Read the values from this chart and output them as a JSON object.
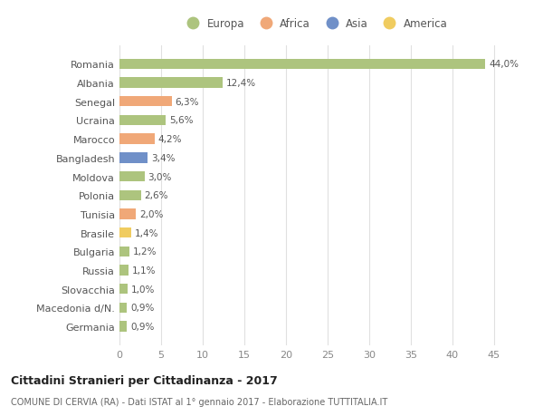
{
  "countries": [
    "Romania",
    "Albania",
    "Senegal",
    "Ucraina",
    "Marocco",
    "Bangladesh",
    "Moldova",
    "Polonia",
    "Tunisia",
    "Brasile",
    "Bulgaria",
    "Russia",
    "Slovacchia",
    "Macedonia d/N.",
    "Germania"
  ],
  "values": [
    44.0,
    12.4,
    6.3,
    5.6,
    4.2,
    3.4,
    3.0,
    2.6,
    2.0,
    1.4,
    1.2,
    1.1,
    1.0,
    0.9,
    0.9
  ],
  "labels": [
    "44,0%",
    "12,4%",
    "6,3%",
    "5,6%",
    "4,2%",
    "3,4%",
    "3,0%",
    "2,6%",
    "2,0%",
    "1,4%",
    "1,2%",
    "1,1%",
    "1,0%",
    "0,9%",
    "0,9%"
  ],
  "continents": [
    "Europa",
    "Europa",
    "Africa",
    "Europa",
    "Africa",
    "Asia",
    "Europa",
    "Europa",
    "Africa",
    "America",
    "Europa",
    "Europa",
    "Europa",
    "Europa",
    "Europa"
  ],
  "colors": {
    "Europa": "#adc47e",
    "Africa": "#f0a878",
    "Asia": "#7090c8",
    "America": "#f0cc60"
  },
  "legend_order": [
    "Europa",
    "Africa",
    "Asia",
    "America"
  ],
  "title": "Cittadini Stranieri per Cittadinanza - 2017",
  "subtitle": "COMUNE DI CERVIA (RA) - Dati ISTAT al 1° gennaio 2017 - Elaborazione TUTTITALIA.IT",
  "xlim": [
    0,
    47
  ],
  "xticks": [
    0,
    5,
    10,
    15,
    20,
    25,
    30,
    35,
    40,
    45
  ],
  "bg_color": "#ffffff",
  "grid_color": "#e0e0e0",
  "bar_height": 0.55
}
